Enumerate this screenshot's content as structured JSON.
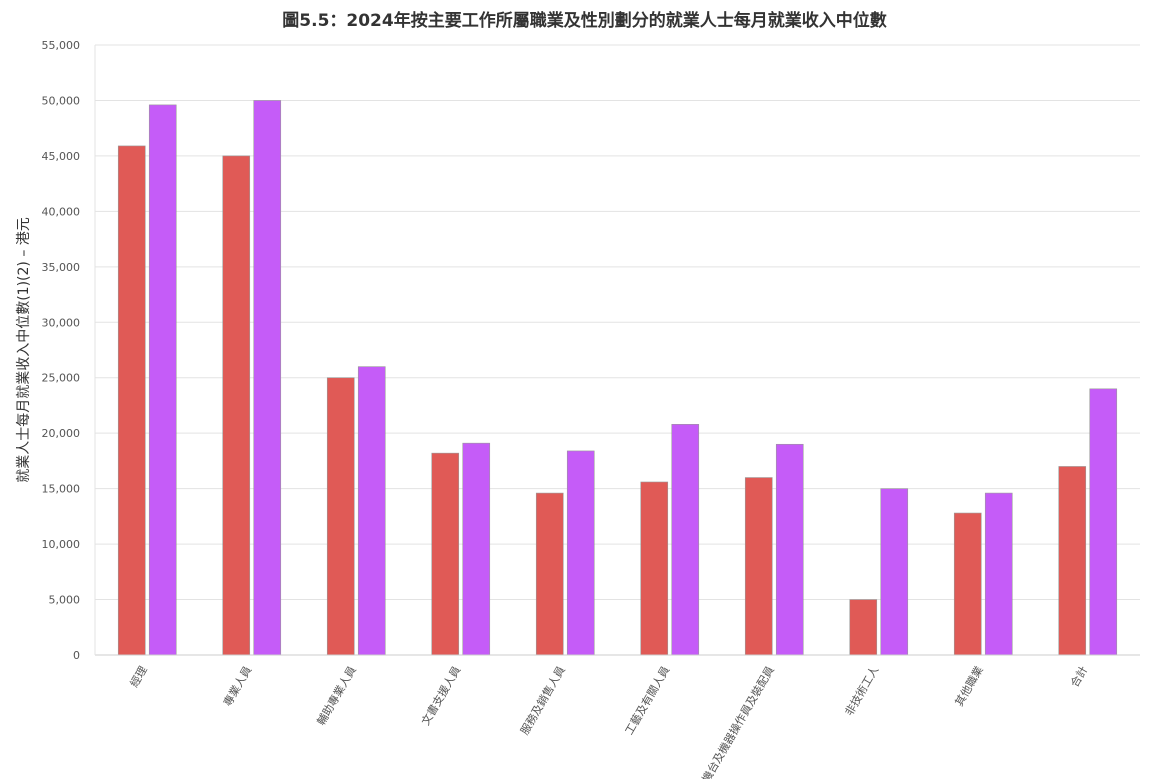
{
  "chart_data": {
    "type": "bar",
    "title": "圖5.5：2024年按主要工作所屬職業及性別劃分的就業人士每月就業收入中位數",
    "xlabel": "",
    "ylabel": "就業人士每月就業收入中位數(1)(2) – 港元",
    "ylim": [
      0,
      55000
    ],
    "yticks": [
      "0",
      "5,000",
      "10,000",
      "15,000",
      "20,000",
      "25,000",
      "30,000",
      "35,000",
      "40,000",
      "45,000",
      "50,000",
      "55,000"
    ],
    "categories": [
      "經理",
      "專業人員",
      "輔助專業人員",
      "文書支援人員",
      "服務及銷售人員",
      "工藝及有關人員",
      "機台及機器操作員及裝配員",
      "非技術工人",
      "其他職業",
      "合計"
    ],
    "grid": true,
    "series": [
      {
        "color": "#e05a56",
        "values": [
          45900,
          45000,
          25000,
          18200,
          14600,
          15600,
          16000,
          5000,
          12800,
          17000
        ]
      },
      {
        "color": "#c55cf8",
        "values": [
          49600,
          50000,
          26000,
          19100,
          18400,
          20800,
          19000,
          15000,
          14600,
          24000
        ]
      }
    ]
  }
}
